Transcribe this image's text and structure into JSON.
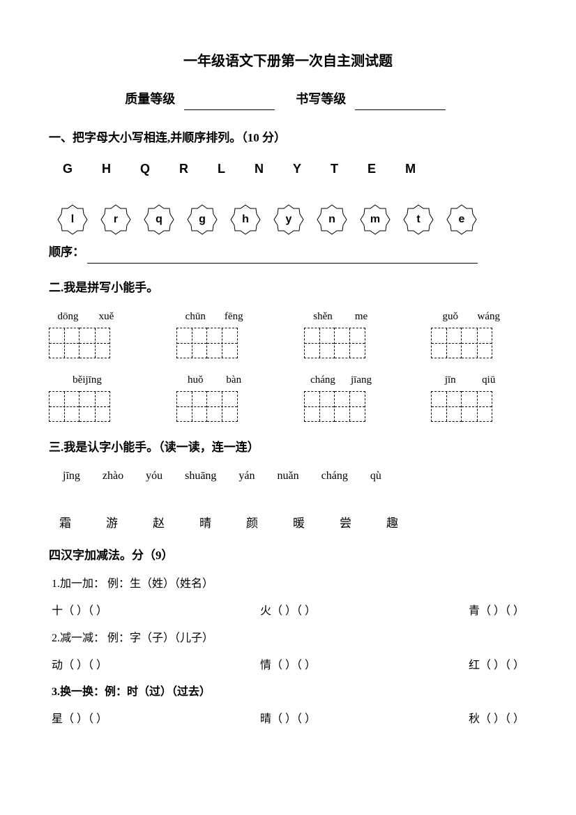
{
  "title": "一年级语文下册第一次自主测试题",
  "grade": {
    "quality_label": "质量等级",
    "writing_label": "书写等级"
  },
  "s1": {
    "heading": "一、把字母大小写相连,并顺序排列。（10 分）",
    "uppers": [
      "G",
      "H",
      "Q",
      "R",
      "L",
      "N",
      "Y",
      "T",
      "E",
      "M"
    ],
    "lowers": [
      "l",
      "r",
      "q",
      "g",
      "h",
      "y",
      "n",
      "m",
      "t",
      "e"
    ],
    "order_label": "顺序："
  },
  "s2": {
    "heading": "二.我是拼写小能手。",
    "row1": [
      {
        "a": "dōng",
        "b": "xuě"
      },
      {
        "a": "chūn",
        "b": "fēng"
      },
      {
        "a": "shěn",
        "b": "me"
      },
      {
        "a": "guǒ",
        "b": "wáng"
      }
    ],
    "row2": [
      {
        "a": "běijīng",
        "b": ""
      },
      {
        "a": "huǒ",
        "b": "bàn"
      },
      {
        "a": "cháng",
        "b": "jīang"
      },
      {
        "a": "jīn",
        "b": "qiū"
      }
    ]
  },
  "s3": {
    "heading": "三.我是认字小能手。（读一读，连一连）",
    "pinyins": [
      "jīng",
      "zhào",
      "yóu",
      "shuāng",
      "yán",
      "nuǎn",
      "cháng",
      "qù"
    ],
    "chars": [
      "霜",
      "游",
      "赵",
      "晴",
      "颜",
      "暖",
      "尝",
      "趣"
    ]
  },
  "s4": {
    "heading": "四汉字加减法。分（9）",
    "l1": "1.加一加：  例：生（姓）（姓名）",
    "r1": {
      "a": "十",
      "b": "火",
      "c": "青"
    },
    "l2": "2.减一减：  例：字（子）（儿子）",
    "r2": {
      "a": "动",
      "b": "情",
      "c": "红"
    },
    "l3": "3.换一换：例：时（过）（过去）",
    "r3": {
      "a": "星",
      "b": "晴",
      "c": "秋"
    },
    "paren": "（        ）（           ）"
  }
}
